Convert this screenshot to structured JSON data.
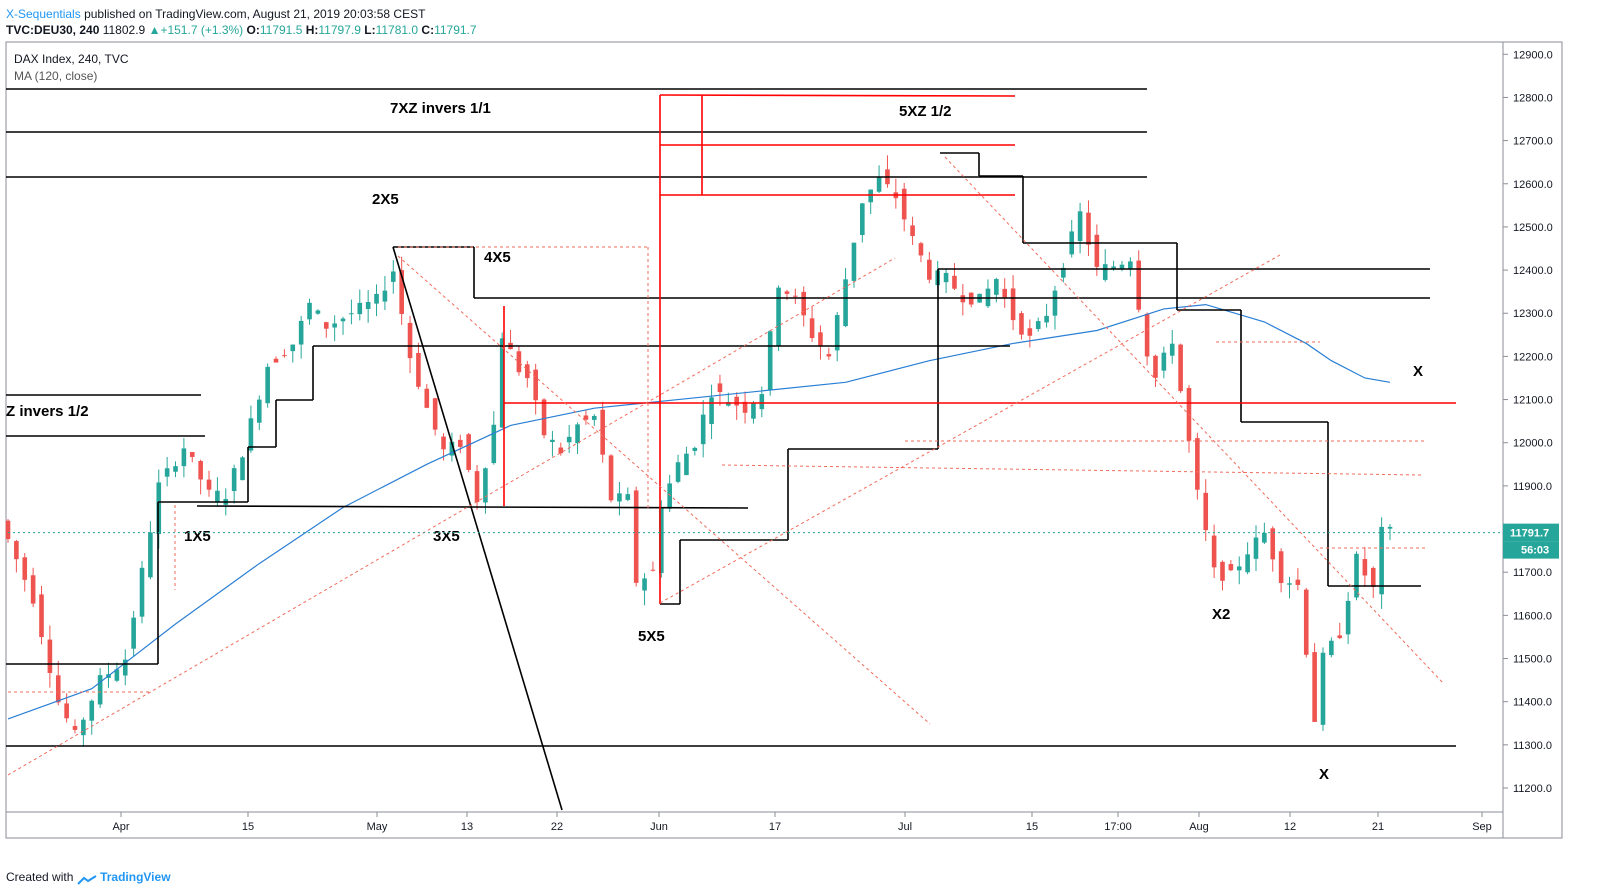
{
  "header": {
    "author": "X-Sequentials",
    "published_text": "published on TradingView.com, August 21, 2019 20:03:58 CEST"
  },
  "ohlc_bar": {
    "symbol": "TVC:DEU30, 240",
    "last": "11802.9",
    "change": "+151.7 (+1.3%)",
    "o_label": "O:",
    "o": "11791.5",
    "h_label": "H:",
    "h": "11797.9",
    "l_label": "L:",
    "l": "11781.0",
    "c_label": "C:",
    "c": "11791.7"
  },
  "legend": {
    "title": "DAX Index, 240, TVC",
    "ma": "MA (120, close)"
  },
  "footer": {
    "created_with": "Created with",
    "brand": "TradingView"
  },
  "price_tag": {
    "value": "11791.7",
    "countdown": "56:03"
  },
  "colors": {
    "up": "#26a69a",
    "down": "#ef5350",
    "ma": "#2a7fd4",
    "black_lines": "#000000",
    "red_lines": "#ff0000",
    "dotted_red": "#f26b5b",
    "tag": "#26a69a"
  },
  "chart_data": {
    "type": "candlestick",
    "title": "DAX Index, 240, TVC",
    "y_ticks": [
      "11200.0",
      "11300.0",
      "11400.0",
      "11500.0",
      "11600.0",
      "11700.0",
      "11800.0",
      "11900.0",
      "12000.0",
      "12100.0",
      "12200.0",
      "12300.0",
      "12400.0",
      "12500.0",
      "12600.0",
      "12700.0",
      "12800.0",
      "12900.0"
    ],
    "x_ticks": [
      "Apr",
      "15",
      "May",
      "13",
      "22",
      "Jun",
      "17",
      "Jul",
      "15",
      "17:00",
      "Aug",
      "12",
      "21",
      "Sep"
    ],
    "ylim": [
      11150,
      12920
    ],
    "annotations": [
      "7XZ invers 1/1",
      "5XZ 1/2",
      "2X5",
      "4X5",
      "Z invers 1/2",
      "1X5",
      "3X5",
      "5X5",
      "X2",
      "X",
      "X"
    ],
    "price_path": [
      [
        0,
        11820
      ],
      [
        4,
        11640
      ],
      [
        7,
        11400
      ],
      [
        9,
        11320
      ],
      [
        12,
        11450
      ],
      [
        15,
        11500
      ],
      [
        17,
        11700
      ],
      [
        19,
        11900
      ],
      [
        22,
        11990
      ],
      [
        25,
        11880
      ],
      [
        27,
        11880
      ],
      [
        29,
        11980
      ],
      [
        32,
        12180
      ],
      [
        35,
        12230
      ],
      [
        37,
        12320
      ],
      [
        39,
        12270
      ],
      [
        42,
        12300
      ],
      [
        45,
        12330
      ],
      [
        47,
        12400
      ],
      [
        49,
        12200
      ],
      [
        51,
        12080
      ],
      [
        53,
        11980
      ],
      [
        55,
        12000
      ],
      [
        57,
        11870
      ],
      [
        59,
        12040
      ],
      [
        60,
        12250
      ],
      [
        62,
        12170
      ],
      [
        63,
        12150
      ],
      [
        65,
        12020
      ],
      [
        67,
        11980
      ],
      [
        69,
        12040
      ],
      [
        71,
        12060
      ],
      [
        73,
        11870
      ],
      [
        75,
        11870
      ],
      [
        76,
        11680
      ],
      [
        78,
        11700
      ],
      [
        79,
        11860
      ],
      [
        81,
        11950
      ],
      [
        83,
        12000
      ],
      [
        85,
        12120
      ],
      [
        87,
        12100
      ],
      [
        89,
        12080
      ],
      [
        91,
        12120
      ],
      [
        93,
        12370
      ],
      [
        95,
        12330
      ],
      [
        97,
        12250
      ],
      [
        99,
        12200
      ],
      [
        101,
        12380
      ],
      [
        103,
        12560
      ],
      [
        105,
        12610
      ],
      [
        107,
        12570
      ],
      [
        109,
        12470
      ],
      [
        111,
        12390
      ],
      [
        113,
        12380
      ],
      [
        115,
        12340
      ],
      [
        117,
        12330
      ],
      [
        119,
        12380
      ],
      [
        121,
        12290
      ],
      [
        123,
        12240
      ],
      [
        125,
        12300
      ],
      [
        127,
        12420
      ],
      [
        129,
        12530
      ],
      [
        131,
        12400
      ],
      [
        133,
        12410
      ],
      [
        135,
        12430
      ],
      [
        137,
        12210
      ],
      [
        138,
        12150
      ],
      [
        140,
        12240
      ],
      [
        142,
        12000
      ],
      [
        143,
        11880
      ],
      [
        145,
        11700
      ],
      [
        147,
        11690
      ],
      [
        149,
        11750
      ],
      [
        151,
        11790
      ],
      [
        153,
        11690
      ],
      [
        155,
        11670
      ],
      [
        156,
        11520
      ],
      [
        157,
        11360
      ],
      [
        158,
        11500
      ],
      [
        160,
        11560
      ],
      [
        162,
        11730
      ],
      [
        164,
        11660
      ],
      [
        165,
        11792
      ]
    ],
    "ma_path": [
      [
        0,
        11360
      ],
      [
        10,
        11430
      ],
      [
        20,
        11580
      ],
      [
        30,
        11720
      ],
      [
        40,
        11850
      ],
      [
        50,
        11950
      ],
      [
        60,
        12040
      ],
      [
        70,
        12080
      ],
      [
        80,
        12100
      ],
      [
        90,
        12120
      ],
      [
        100,
        12140
      ],
      [
        110,
        12190
      ],
      [
        120,
        12230
      ],
      [
        130,
        12260
      ],
      [
        138,
        12310
      ],
      [
        143,
        12320
      ],
      [
        150,
        12280
      ],
      [
        155,
        12230
      ],
      [
        158,
        12190
      ],
      [
        162,
        12150
      ],
      [
        165,
        12140
      ]
    ]
  }
}
